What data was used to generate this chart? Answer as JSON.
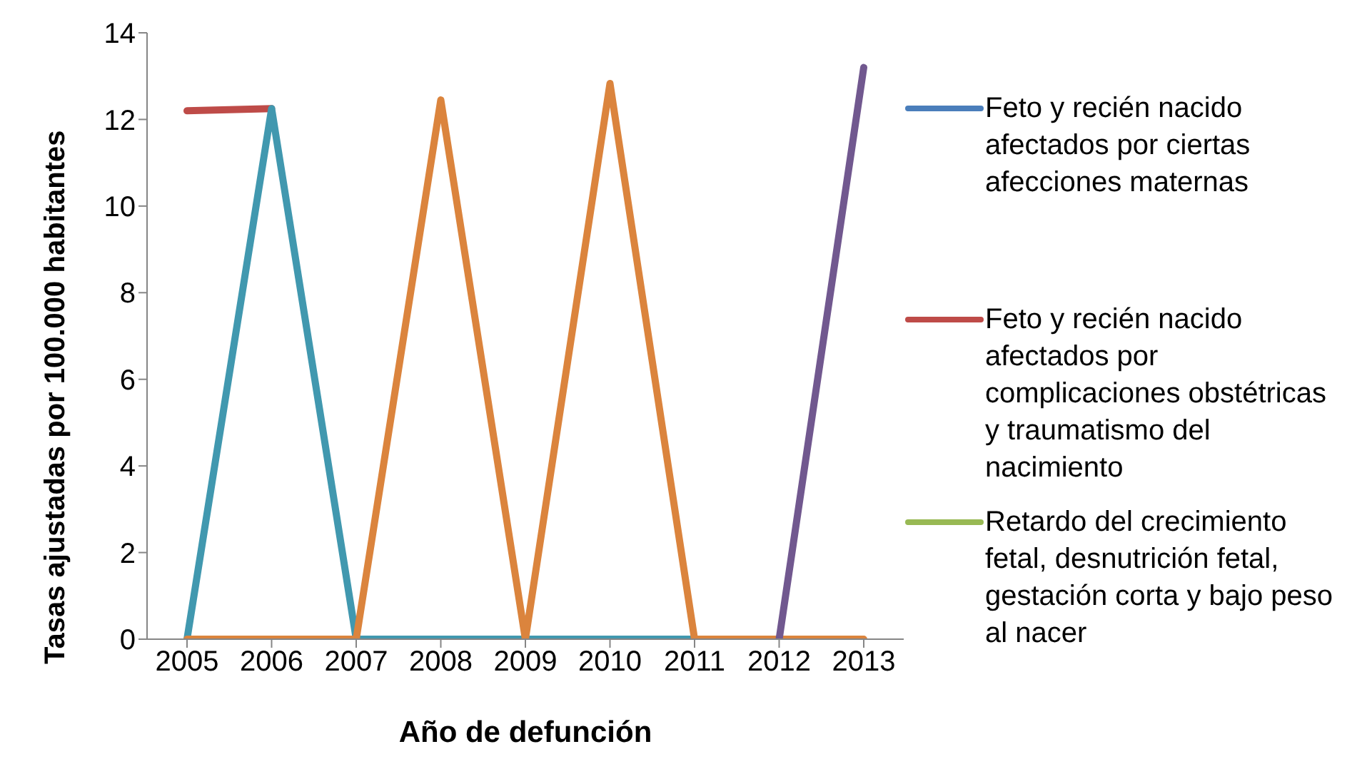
{
  "chart_data": {
    "type": "line",
    "xlabel": "Año de defunción",
    "ylabel": "Tasas ajustadas por 100.000 habitantes",
    "categories": [
      "2005",
      "2006",
      "2007",
      "2008",
      "2009",
      "2010",
      "2011",
      "2012",
      "2013"
    ],
    "ylim": [
      0,
      14
    ],
    "yticks": [
      0,
      2,
      4,
      6,
      8,
      10,
      12,
      14
    ],
    "grid": false,
    "legend": "right",
    "marker": "none",
    "series": [
      {
        "name": "Feto y recién nacido afectados por ciertas afecciones maternas",
        "color": "#4a7ebb",
        "values": [
          null,
          null,
          null,
          null,
          null,
          null,
          null,
          null,
          null
        ]
      },
      {
        "name": "Feto y recién nacido afectados por complicaciones obstétricas y traumatismo del nacimiento",
        "color": "#be4b48",
        "values": [
          12.2,
          12.25,
          null,
          null,
          null,
          null,
          null,
          null,
          null
        ]
      },
      {
        "name": "Retardo del crecimiento fetal, desnutrición fetal, gestación corta y bajo peso al nacer",
        "color": "#98b954",
        "values": [
          null,
          null,
          null,
          null,
          null,
          null,
          null,
          null,
          null
        ]
      },
      {
        "color": "#4198af",
        "values": [
          0,
          12.25,
          0,
          0,
          0,
          0,
          0,
          null,
          null
        ]
      },
      {
        "color": "#db843d",
        "values": [
          0,
          0,
          0,
          12.45,
          0,
          12.83,
          0,
          0,
          0
        ]
      },
      {
        "color": "#71588f",
        "values": [
          null,
          null,
          null,
          null,
          null,
          null,
          null,
          0,
          13.2
        ]
      }
    ]
  }
}
